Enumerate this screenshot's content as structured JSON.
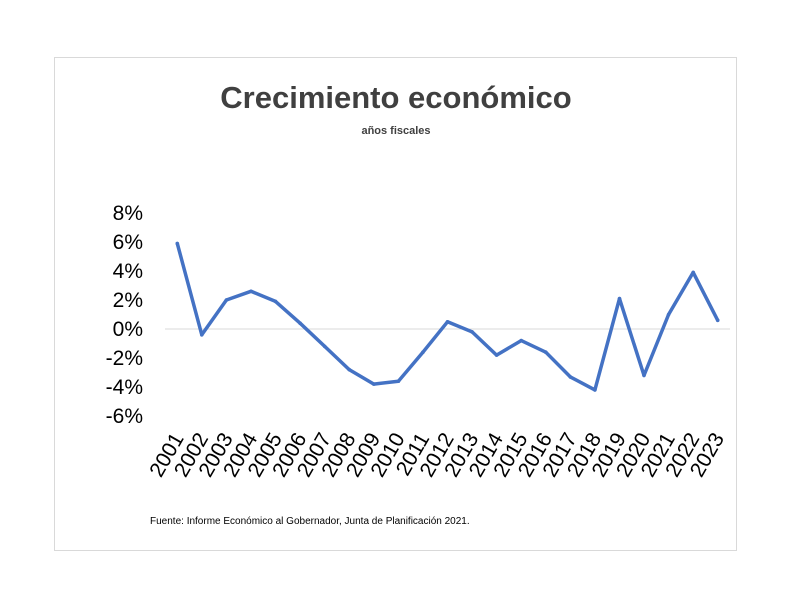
{
  "chart_data": {
    "type": "line",
    "title": "Crecimiento económico",
    "subtitle": "años fiscales",
    "source": "Fuente: Informe Económico al Gobernador, Junta de Planificación 2021.",
    "x": [
      "2001",
      "2002",
      "2003",
      "2004",
      "2005",
      "2006",
      "2007",
      "2008",
      "2009",
      "2010",
      "2011",
      "2012",
      "2013",
      "2014",
      "2015",
      "2016",
      "2017",
      "2018",
      "2019",
      "2020",
      "2021",
      "2022",
      "2023"
    ],
    "series": [
      {
        "values": [
          5.9,
          -0.4,
          2.0,
          2.6,
          1.9,
          0.4,
          -1.2,
          -2.8,
          -3.8,
          -3.6,
          -1.6,
          0.5,
          -0.2,
          -1.8,
          -0.8,
          -1.6,
          -3.3,
          -4.2,
          2.1,
          -3.2,
          1.0,
          3.9,
          0.6
        ],
        "color": "#4472c4"
      }
    ],
    "yticks": [
      "-6%",
      "-4%",
      "-2%",
      "0%",
      "2%",
      "4%",
      "6%",
      "8%"
    ],
    "ylim": [
      -6,
      8
    ],
    "grid": false,
    "legend": "none"
  }
}
